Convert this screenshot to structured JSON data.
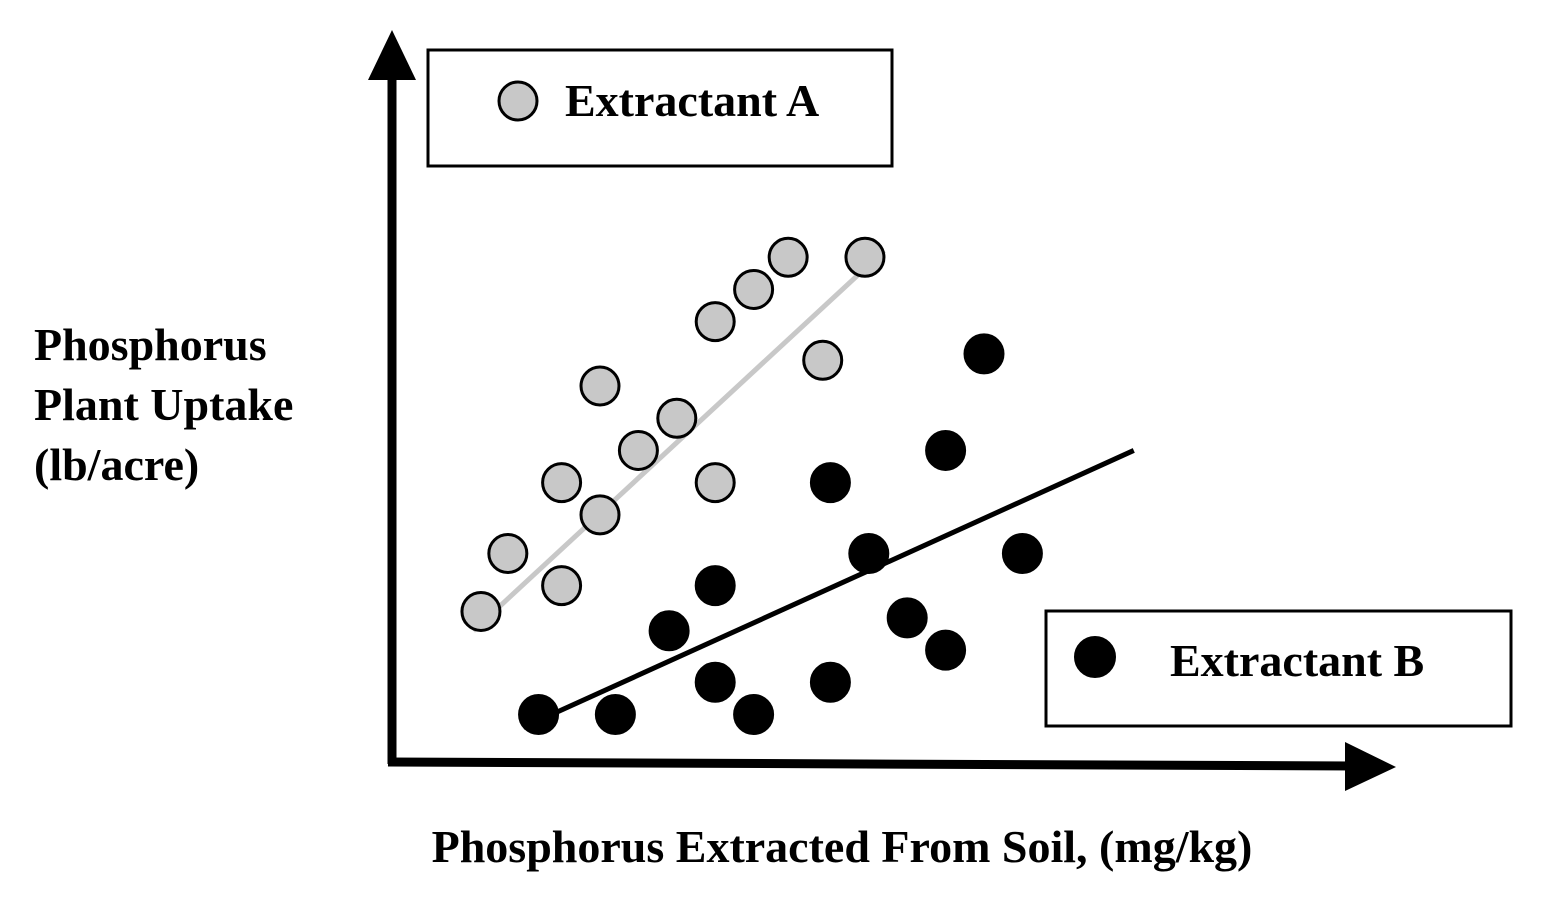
{
  "chart_data": {
    "type": "scatter",
    "title": "",
    "xlabel": "Phosphorus Extracted From Soil, (mg/kg)",
    "ylabel": [
      "Phosphorus",
      "Plant Uptake",
      "(lb/acre)"
    ],
    "xlim": [
      0,
      10
    ],
    "ylim": [
      0,
      10
    ],
    "ticks": "none",
    "grid": false,
    "legend": [
      {
        "label": "Extractant A",
        "placement": "top-left"
      },
      {
        "label": "Extractant B",
        "placement": "bottom-right"
      }
    ],
    "series": [
      {
        "name": "Extractant A",
        "color": "#c8c8c8",
        "stroke": "#000000",
        "points": [
          [
            0.95,
            2.4
          ],
          [
            1.3,
            3.3
          ],
          [
            2.0,
            2.8
          ],
          [
            2.0,
            4.4
          ],
          [
            2.5,
            3.9
          ],
          [
            2.5,
            5.9
          ],
          [
            3.0,
            4.9
          ],
          [
            3.5,
            5.4
          ],
          [
            4.0,
            6.9
          ],
          [
            4.0,
            4.4
          ],
          [
            4.5,
            7.4
          ],
          [
            4.95,
            7.9
          ],
          [
            5.4,
            6.3
          ],
          [
            5.95,
            7.9
          ]
        ],
        "trendline": {
          "x": [
            0.85,
            6.2
          ],
          "y": [
            2.1,
            8.0
          ],
          "color": "#c8c8c8"
        }
      },
      {
        "name": "Extractant B",
        "color": "#000000",
        "stroke": "#000000",
        "points": [
          [
            1.7,
            0.8
          ],
          [
            2.7,
            0.8
          ],
          [
            3.4,
            2.1
          ],
          [
            4.0,
            1.3
          ],
          [
            4.0,
            2.8
          ],
          [
            4.5,
            0.8
          ],
          [
            5.5,
            1.3
          ],
          [
            5.5,
            4.4
          ],
          [
            6.0,
            3.3
          ],
          [
            6.5,
            2.3
          ],
          [
            7.0,
            1.8
          ],
          [
            7.0,
            4.9
          ],
          [
            7.5,
            6.4
          ],
          [
            8.0,
            3.3
          ]
        ],
        "trendline": {
          "x": [
            1.5,
            9.45
          ],
          "y": [
            0.6,
            4.9
          ],
          "color": "#000000"
        }
      }
    ]
  }
}
